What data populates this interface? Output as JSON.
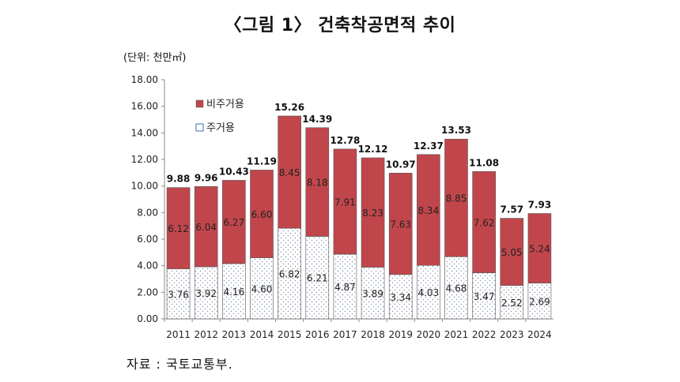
{
  "title": "〈그림 1〉 건축착공면적 추이",
  "unit_label": "(단위: 천만㎡)",
  "source_label": "자료 : 국토교통부.",
  "colors": {
    "nonresidential": "#c0464b",
    "residential_dots": "#7f8fa6",
    "border": "#555555"
  },
  "chart_data": {
    "type": "bar",
    "stacked": true,
    "title": "〈그림 1〉 건축착공면적 추이",
    "ylabel": "(단위: 천만㎡)",
    "xlabel": "",
    "ylim": [
      0,
      18
    ],
    "yticks": [
      "0.00",
      "2.00",
      "4.00",
      "6.00",
      "8.00",
      "10.00",
      "12.00",
      "14.00",
      "16.00",
      "18.00"
    ],
    "grid": false,
    "legend_position": "top-left",
    "categories": [
      "2011",
      "2012",
      "2013",
      "2014",
      "2015",
      "2016",
      "2017",
      "2018",
      "2019",
      "2020",
      "2021",
      "2022",
      "2023",
      "2024"
    ],
    "series": [
      {
        "name": "주거용",
        "values": [
          3.76,
          3.92,
          4.16,
          4.6,
          6.82,
          6.21,
          4.87,
          3.89,
          3.34,
          4.03,
          4.68,
          3.47,
          2.52,
          2.69
        ]
      },
      {
        "name": "비주거용",
        "values": [
          6.12,
          6.04,
          6.27,
          6.6,
          8.45,
          8.18,
          7.91,
          8.23,
          7.63,
          8.34,
          8.85,
          7.62,
          5.05,
          5.24
        ]
      }
    ],
    "totals": [
      9.88,
      9.96,
      10.43,
      11.19,
      15.26,
      14.39,
      12.78,
      12.12,
      10.97,
      12.37,
      13.53,
      11.08,
      7.57,
      7.93
    ]
  }
}
